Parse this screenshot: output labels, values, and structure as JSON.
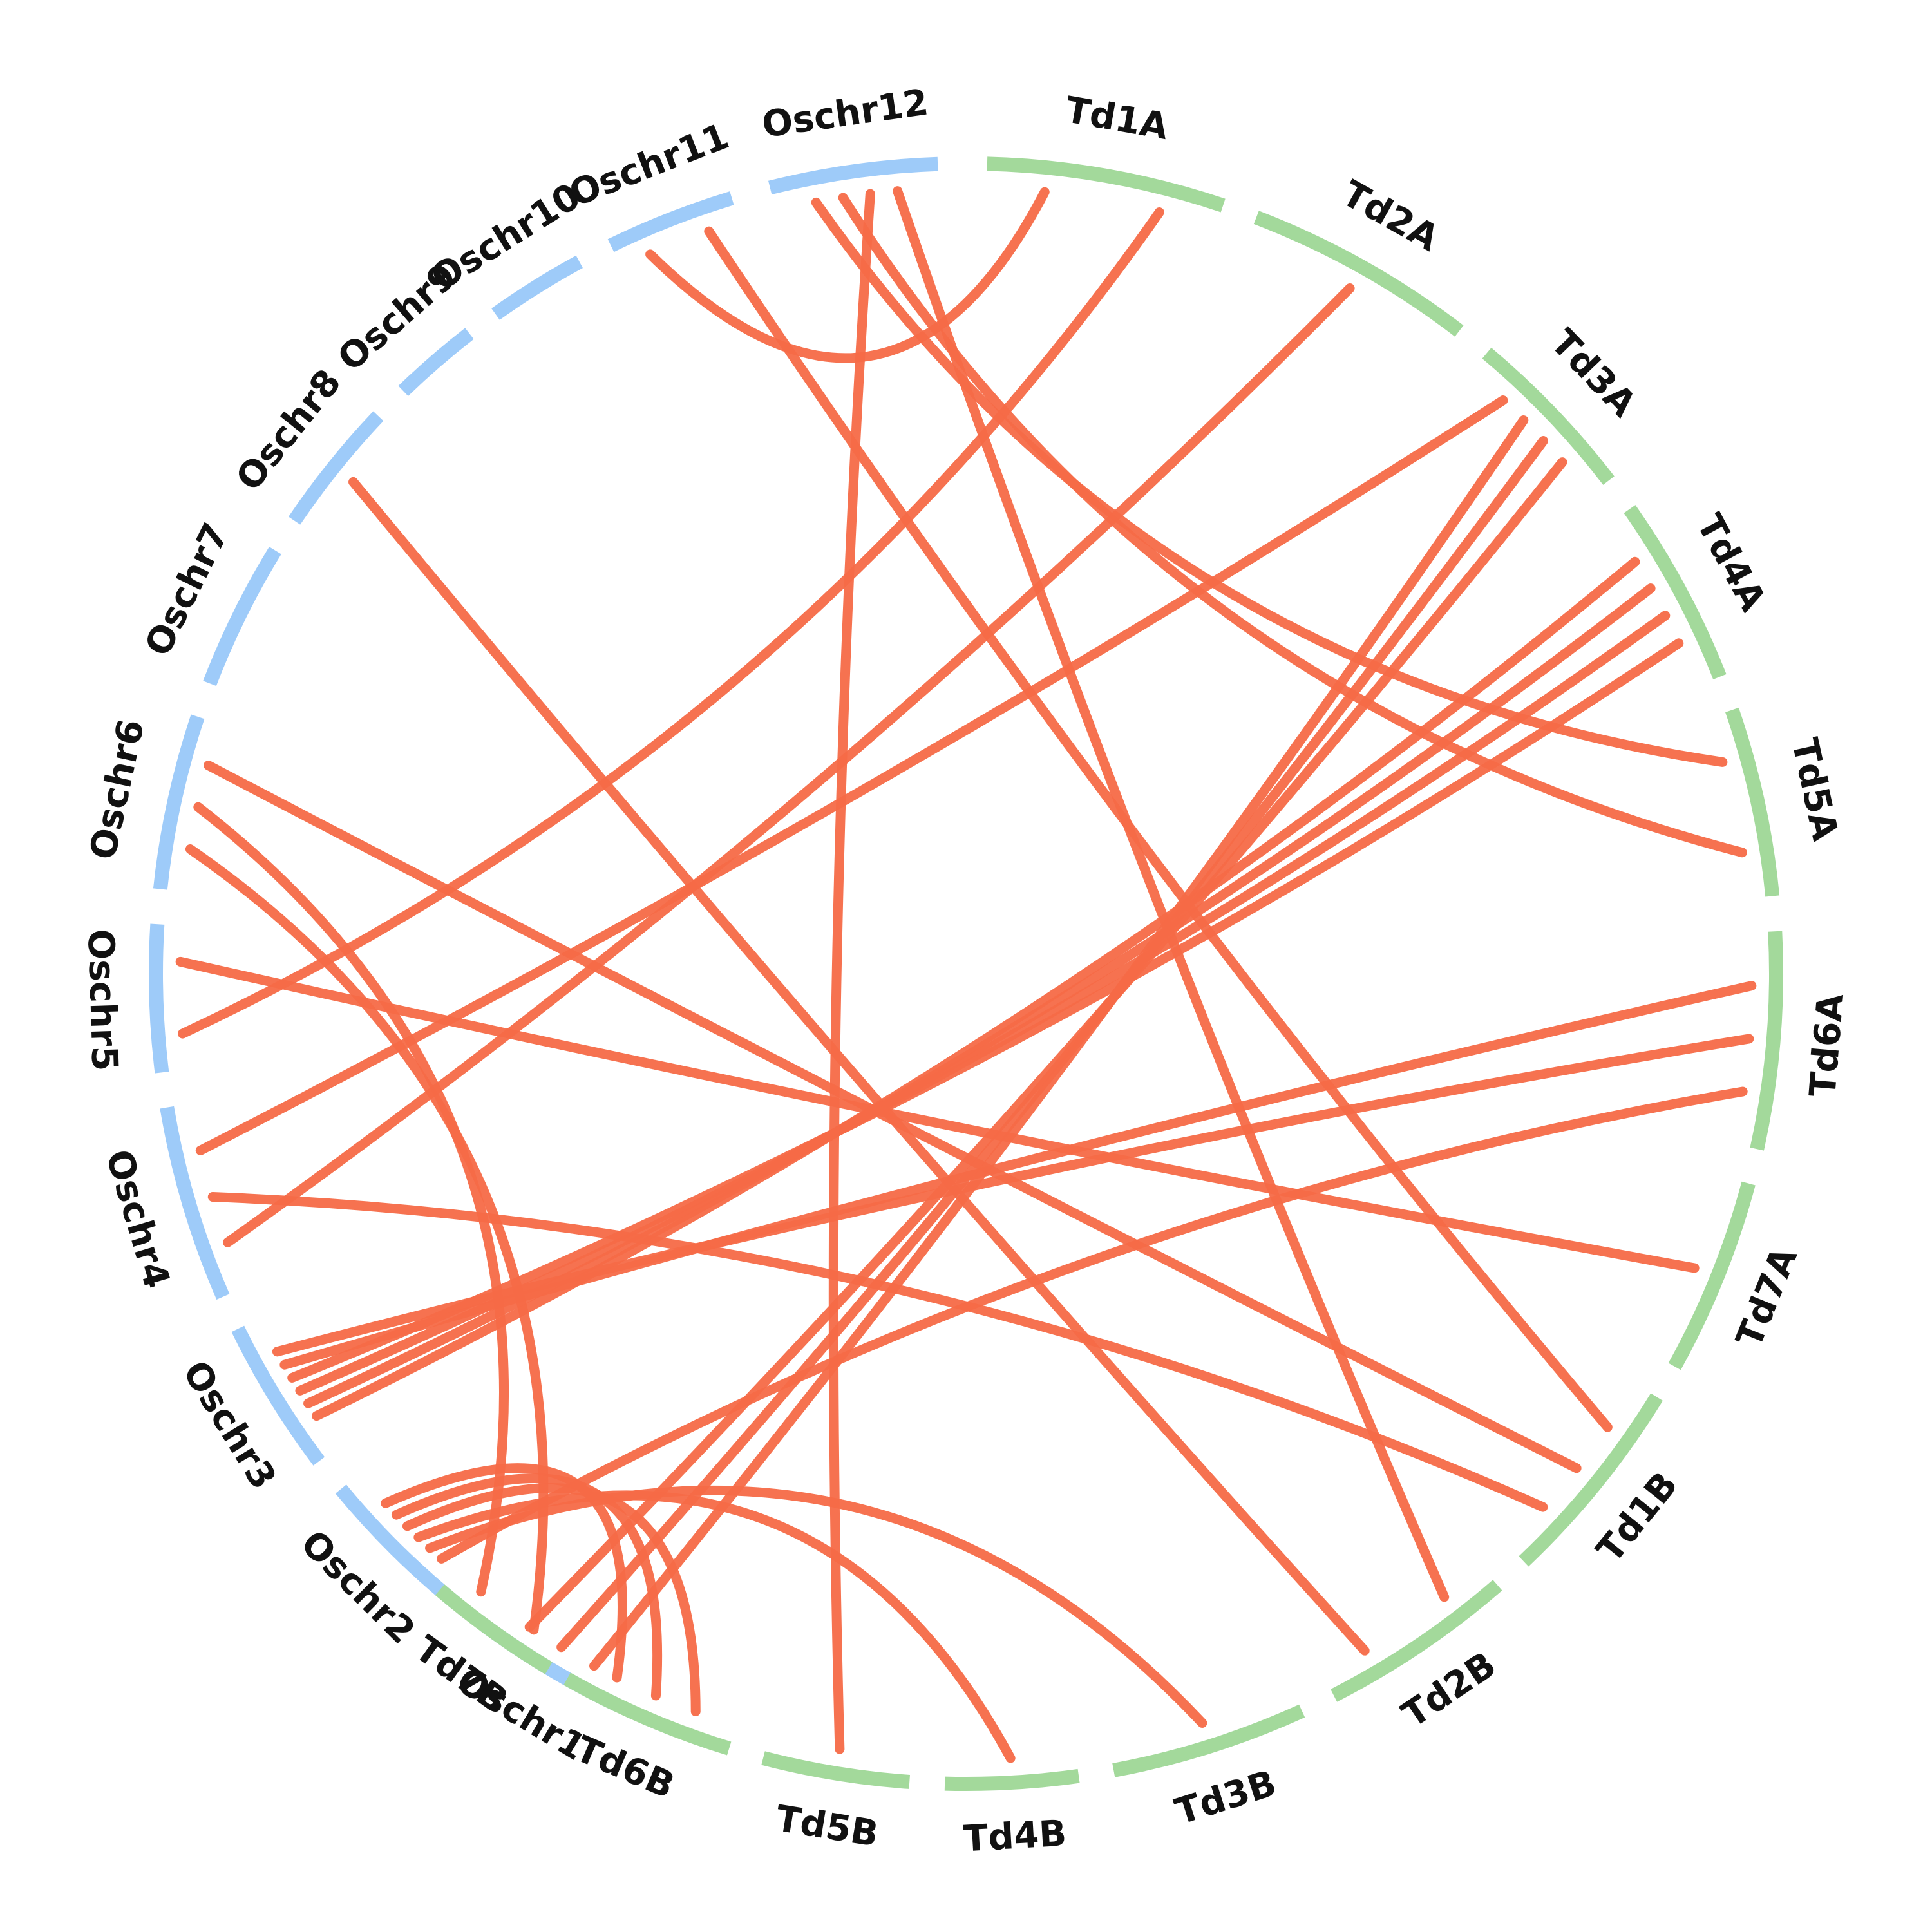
{
  "chromosomes": [
    {
      "name": "Oschr1",
      "group": "rice"
    },
    {
      "name": "Oschr2",
      "group": "rice"
    },
    {
      "name": "Oschr3",
      "group": "rice"
    },
    {
      "name": "Oschr4",
      "group": "rice"
    },
    {
      "name": "Oschr5",
      "group": "rice"
    },
    {
      "name": "Oschr6",
      "group": "rice"
    },
    {
      "name": "Oschr7",
      "group": "rice"
    },
    {
      "name": "Oschr8",
      "group": "rice"
    },
    {
      "name": "Oschr9",
      "group": "rice"
    },
    {
      "name": "Oschr10",
      "group": "rice"
    },
    {
      "name": "Oschr11",
      "group": "rice"
    },
    {
      "name": "Oschr12",
      "group": "rice"
    },
    {
      "name": "Td1A",
      "group": "wheat"
    },
    {
      "name": "Td2A",
      "group": "wheat"
    },
    {
      "name": "Td3A",
      "group": "wheat"
    },
    {
      "name": "Td4A",
      "group": "wheat"
    },
    {
      "name": "Td5A",
      "group": "wheat"
    },
    {
      "name": "Td6A",
      "group": "wheat"
    },
    {
      "name": "Td7A",
      "group": "wheat"
    },
    {
      "name": "Td1B",
      "group": "wheat"
    },
    {
      "name": "Td2B",
      "group": "wheat"
    },
    {
      "name": "Td3B",
      "group": "wheat"
    },
    {
      "name": "Td4B",
      "group": "wheat"
    },
    {
      "name": "Td5B",
      "group": "wheat"
    },
    {
      "name": "Td6B",
      "group": "wheat"
    },
    {
      "name": "Td7B",
      "group": "wheat"
    }
  ],
  "colors": {
    "rice": "#9ecbf9",
    "wheat": "#a3d99b",
    "link": "#f56a47"
  },
  "links": [
    [
      "Oschr11",
      "Td1A"
    ],
    [
      "Oschr11",
      "Td1B"
    ],
    [
      "Oschr12",
      "Td5A"
    ],
    [
      "Oschr12",
      "Td5A"
    ],
    [
      "Oschr12",
      "Td5B"
    ],
    [
      "Oschr12",
      "Td2B"
    ],
    [
      "Oschr8",
      "Td2B"
    ],
    [
      "Oschr6",
      "Td7B"
    ],
    [
      "Oschr6",
      "Td7B"
    ],
    [
      "Oschr6",
      "Td1B"
    ],
    [
      "Oschr5",
      "Td1A"
    ],
    [
      "Oschr5",
      "Td7A"
    ],
    [
      "Oschr4",
      "Td2A"
    ],
    [
      "Oschr4",
      "Td1B"
    ],
    [
      "Oschr4",
      "Td3A"
    ],
    [
      "Oschr3",
      "Td4A"
    ],
    [
      "Oschr3",
      "Td4A"
    ],
    [
      "Oschr3",
      "Td4A"
    ],
    [
      "Oschr3",
      "Td4A"
    ],
    [
      "Oschr3",
      "Td6A"
    ],
    [
      "Oschr3",
      "Td6A"
    ],
    [
      "Oschr2",
      "Td6A"
    ],
    [
      "Oschr2",
      "Td3B"
    ],
    [
      "Oschr2",
      "Td4B"
    ],
    [
      "Oschr2",
      "Td6B"
    ],
    [
      "Oschr2",
      "Td6B"
    ],
    [
      "Oschr2",
      "Td6B"
    ],
    [
      "Oschr1",
      "Td3A"
    ],
    [
      "Oschr1",
      "Td3A"
    ],
    [
      "Oschr1",
      "Td3A"
    ]
  ]
}
